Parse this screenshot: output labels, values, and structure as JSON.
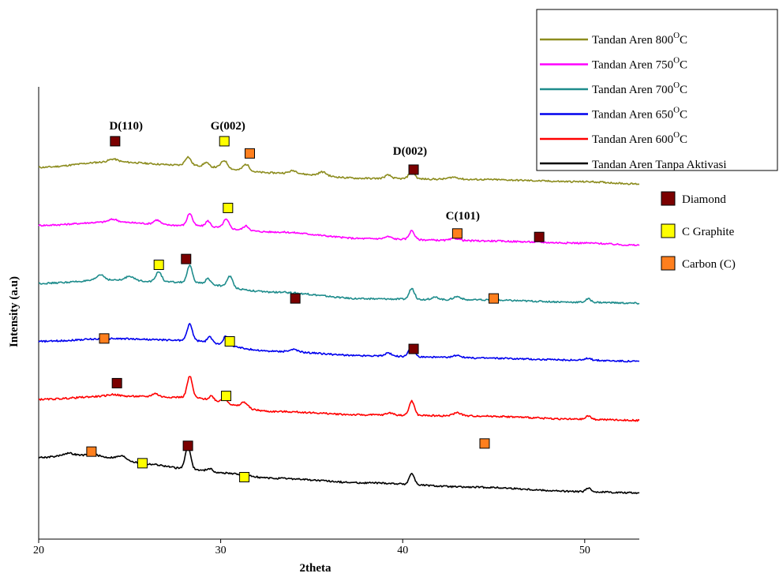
{
  "chart_data": {
    "type": "line",
    "title": "",
    "xlabel": "2theta",
    "ylabel": "Intensity (a.u)",
    "xlim": [
      20,
      53
    ],
    "x_ticks": [
      20,
      30,
      40,
      50
    ],
    "y_ticks_shown": false,
    "grid": false,
    "legend_position": "top-right",
    "series": [
      {
        "name": "Tandan Aren 800",
        "name_sup": "O",
        "name_tail": "C",
        "color": "#8c8c1e",
        "offset": 5,
        "base": [
          [
            20,
            0.0
          ],
          [
            24,
            0.1
          ],
          [
            28,
            0.04
          ],
          [
            33,
            -0.1
          ],
          [
            38,
            -0.2
          ],
          [
            44,
            -0.22
          ],
          [
            50,
            -0.26
          ],
          [
            53,
            -0.3
          ]
        ],
        "peaks": [
          [
            24.1,
            0.05,
            0.35
          ],
          [
            28.2,
            0.15,
            0.22
          ],
          [
            29.2,
            0.07,
            0.18
          ],
          [
            30.2,
            0.14,
            0.25
          ],
          [
            31.4,
            0.12,
            0.25
          ],
          [
            34.0,
            0.05,
            0.3
          ],
          [
            35.6,
            0.07,
            0.3
          ],
          [
            39.2,
            0.06,
            0.25
          ],
          [
            40.5,
            0.14,
            0.22
          ],
          [
            42.8,
            0.04,
            0.4
          ]
        ]
      },
      {
        "name": "Tandan Aren 750",
        "name_sup": "O",
        "name_tail": "C",
        "color": "#ff00ff",
        "offset": 4,
        "base": [
          [
            20,
            0.0
          ],
          [
            24,
            0.06
          ],
          [
            28,
            0.0
          ],
          [
            33,
            -0.12
          ],
          [
            38,
            -0.24
          ],
          [
            44,
            -0.28
          ],
          [
            50,
            -0.32
          ],
          [
            53,
            -0.36
          ]
        ],
        "peaks": [
          [
            24.1,
            0.05,
            0.35
          ],
          [
            26.5,
            0.08,
            0.25
          ],
          [
            28.3,
            0.22,
            0.2
          ],
          [
            29.3,
            0.1,
            0.18
          ],
          [
            30.3,
            0.16,
            0.22
          ],
          [
            31.4,
            0.08,
            0.22
          ],
          [
            39.2,
            0.04,
            0.25
          ],
          [
            40.5,
            0.16,
            0.2
          ],
          [
            42.9,
            0.04,
            0.35
          ]
        ]
      },
      {
        "name": "Tandan Aren 700",
        "name_sup": "O",
        "name_tail": "C",
        "color": "#1e8c8c",
        "offset": 3,
        "base": [
          [
            20,
            0.0
          ],
          [
            24,
            0.06
          ],
          [
            28,
            0.02
          ],
          [
            33,
            -0.16
          ],
          [
            38,
            -0.28
          ],
          [
            44,
            -0.3
          ],
          [
            50,
            -0.34
          ],
          [
            53,
            -0.36
          ]
        ],
        "peaks": [
          [
            23.4,
            0.1,
            0.3
          ],
          [
            25.0,
            0.08,
            0.3
          ],
          [
            26.6,
            0.18,
            0.22
          ],
          [
            28.3,
            0.3,
            0.2
          ],
          [
            29.3,
            0.1,
            0.18
          ],
          [
            30.5,
            0.2,
            0.22
          ],
          [
            40.5,
            0.2,
            0.2
          ],
          [
            41.8,
            0.04,
            0.3
          ],
          [
            43.0,
            0.06,
            0.3
          ],
          [
            50.2,
            0.06,
            0.2
          ]
        ]
      },
      {
        "name": "Tandan Aren 650",
        "name_sup": "O",
        "name_tail": "C",
        "color": "#0000ee",
        "offset": 2,
        "base": [
          [
            20,
            0.0
          ],
          [
            24,
            0.05
          ],
          [
            28,
            0.02
          ],
          [
            33,
            -0.18
          ],
          [
            38,
            -0.26
          ],
          [
            44,
            -0.3
          ],
          [
            50,
            -0.34
          ],
          [
            53,
            -0.36
          ]
        ],
        "peaks": [
          [
            28.3,
            0.3,
            0.2
          ],
          [
            29.4,
            0.1,
            0.18
          ],
          [
            30.3,
            0.16,
            0.22
          ],
          [
            34.0,
            0.04,
            0.3
          ],
          [
            39.2,
            0.06,
            0.22
          ],
          [
            40.5,
            0.22,
            0.2
          ],
          [
            43.0,
            0.05,
            0.3
          ],
          [
            50.2,
            0.04,
            0.2
          ]
        ]
      },
      {
        "name": "Tandan Aren 600",
        "name_sup": "O",
        "name_tail": "C",
        "color": "#ff0000",
        "offset": 1,
        "base": [
          [
            20,
            0.0
          ],
          [
            24,
            0.06
          ],
          [
            28,
            0.04
          ],
          [
            33,
            -0.22
          ],
          [
            38,
            -0.28
          ],
          [
            44,
            -0.3
          ],
          [
            50,
            -0.36
          ],
          [
            53,
            -0.38
          ]
        ],
        "peaks": [
          [
            24.1,
            0.03,
            0.4
          ],
          [
            26.4,
            0.06,
            0.25
          ],
          [
            28.3,
            0.38,
            0.2
          ],
          [
            29.5,
            0.08,
            0.18
          ],
          [
            30.2,
            0.1,
            0.22
          ],
          [
            31.3,
            0.1,
            0.25
          ],
          [
            39.3,
            0.04,
            0.25
          ],
          [
            40.5,
            0.26,
            0.2
          ],
          [
            43.0,
            0.06,
            0.3
          ],
          [
            50.2,
            0.06,
            0.2
          ]
        ]
      },
      {
        "name": "Tandan Aren Tanpa Aktivasi",
        "name_sup": "",
        "name_tail": "",
        "color": "#000000",
        "offset": 0,
        "base": [
          [
            20,
            0.0
          ],
          [
            22,
            0.04
          ],
          [
            24,
            0.0
          ],
          [
            26,
            -0.12
          ],
          [
            28,
            -0.2
          ],
          [
            30,
            -0.28
          ],
          [
            33,
            -0.38
          ],
          [
            38,
            -0.46
          ],
          [
            44,
            -0.54
          ],
          [
            50,
            -0.62
          ],
          [
            53,
            -0.64
          ]
        ],
        "peaks": [
          [
            21.6,
            0.04,
            0.4
          ],
          [
            23.0,
            0.04,
            0.4
          ],
          [
            24.6,
            0.05,
            0.3
          ],
          [
            28.2,
            0.42,
            0.2
          ],
          [
            29.4,
            0.06,
            0.25
          ],
          [
            40.5,
            0.2,
            0.2
          ],
          [
            50.2,
            0.06,
            0.2
          ]
        ]
      }
    ],
    "marker_types": [
      {
        "name": "Diamond",
        "color": "#7b0000"
      },
      {
        "name": "C Graphite",
        "color": "#ffff00"
      },
      {
        "name": "Carbon (C)",
        "color": "#ff7f1e"
      }
    ],
    "markers": [
      {
        "type": "Diamond",
        "x": 24.2,
        "level": 5.45
      },
      {
        "type": "C Graphite",
        "x": 30.2,
        "level": 5.45
      },
      {
        "type": "Carbon (C)",
        "x": 31.6,
        "level": 5.24
      },
      {
        "type": "Diamond",
        "x": 40.6,
        "level": 4.96
      },
      {
        "type": "C Graphite",
        "x": 30.4,
        "level": 4.3
      },
      {
        "type": "Carbon (C)",
        "x": 43.0,
        "level": 3.86
      },
      {
        "type": "Diamond",
        "x": 47.5,
        "level": 3.8
      },
      {
        "type": "C Graphite",
        "x": 26.6,
        "level": 3.32
      },
      {
        "type": "Diamond",
        "x": 28.1,
        "level": 3.42
      },
      {
        "type": "Diamond",
        "x": 34.1,
        "level": 2.74
      },
      {
        "type": "Carbon (C)",
        "x": 45.0,
        "level": 2.74
      },
      {
        "type": "Carbon (C)",
        "x": 23.6,
        "level": 2.05
      },
      {
        "type": "C Graphite",
        "x": 30.5,
        "level": 2.0
      },
      {
        "type": "Diamond",
        "x": 40.6,
        "level": 1.87
      },
      {
        "type": "Diamond",
        "x": 24.3,
        "level": 1.28
      },
      {
        "type": "C Graphite",
        "x": 30.3,
        "level": 1.06
      },
      {
        "type": "Carbon (C)",
        "x": 44.5,
        "level": 0.24
      },
      {
        "type": "Carbon (C)",
        "x": 22.9,
        "level": 0.1
      },
      {
        "type": "C Graphite",
        "x": 25.7,
        "level": -0.1
      },
      {
        "type": "Diamond",
        "x": 28.2,
        "level": 0.2
      },
      {
        "type": "C Graphite",
        "x": 31.3,
        "level": -0.34
      }
    ],
    "annotations": [
      {
        "text": "D(110)",
        "x": 24.8,
        "level": 5.65
      },
      {
        "text": "G(002)",
        "x": 30.4,
        "level": 5.65
      },
      {
        "text": "D(002)",
        "x": 40.4,
        "level": 5.22
      },
      {
        "text": "C(101)",
        "x": 43.3,
        "level": 4.1
      }
    ]
  }
}
